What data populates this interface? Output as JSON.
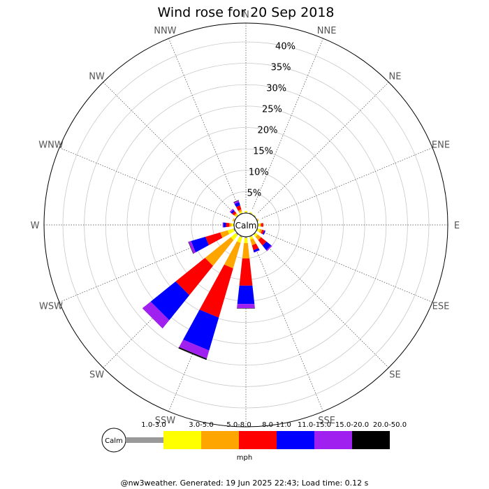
{
  "chart_data": {
    "type": "windrose",
    "title": "Wind rose for 20 Sep 2018",
    "calm_label": "Calm",
    "directions": [
      "N",
      "NNE",
      "NE",
      "ENE",
      "E",
      "ESE",
      "SE",
      "SSE",
      "S",
      "SSW",
      "SW",
      "WSW",
      "W",
      "WNW",
      "NW",
      "NNW"
    ],
    "rings": [
      "5%",
      "10%",
      "15%",
      "20%",
      "25%",
      "30%",
      "35%",
      "40%"
    ],
    "r_max": 40,
    "speed_bins": [
      {
        "label": "1.0-3.0",
        "color": "#999999"
      },
      {
        "label": "3.0-5.0",
        "color": "#ffff00"
      },
      {
        "label": "5.0-8.0",
        "color": "#ffa500"
      },
      {
        "label": "8.0-11.0",
        "color": "#ff0000"
      },
      {
        "label": "11.0-15.0",
        "color": "#0000ff"
      },
      {
        "label": "15.0-20.0",
        "color": "#a020f0"
      },
      {
        "label": "20.0-50.0",
        "color": "#000000"
      }
    ],
    "series": [
      {
        "direction": "N",
        "values": [
          0.2,
          0.3,
          0.0,
          0.0,
          0.0,
          0.0,
          0.0
        ]
      },
      {
        "direction": "NNE",
        "values": [
          0.2,
          0.2,
          0.0,
          0.0,
          0.0,
          0.0,
          0.0
        ]
      },
      {
        "direction": "NE",
        "values": [
          0.2,
          0.1,
          0.0,
          0.0,
          0.0,
          0.0,
          0.0
        ]
      },
      {
        "direction": "ENE",
        "values": [
          0.2,
          0.1,
          0.1,
          0.0,
          0.0,
          0.0,
          0.0
        ]
      },
      {
        "direction": "E",
        "values": [
          0.2,
          0.3,
          0.3,
          0.5,
          0.0,
          0.0,
          0.0
        ]
      },
      {
        "direction": "ESE",
        "values": [
          0.2,
          0.5,
          0.5,
          0.5,
          0.3,
          0.0,
          0.0
        ]
      },
      {
        "direction": "SE",
        "values": [
          0.2,
          0.6,
          1.0,
          1.6,
          1.4,
          0.3,
          0.0
        ]
      },
      {
        "direction": "SSE",
        "values": [
          0.2,
          0.6,
          1.4,
          1.2,
          0.5,
          0.1,
          0.0
        ]
      },
      {
        "direction": "S",
        "values": [
          0.3,
          1.2,
          3.6,
          6.4,
          4.3,
          1.0,
          0.1
        ]
      },
      {
        "direction": "SSW",
        "values": [
          0.3,
          1.3,
          6.2,
          12.0,
          8.0,
          2.0,
          0.3
        ]
      },
      {
        "direction": "SW",
        "values": [
          0.3,
          1.5,
          7.7,
          8.8,
          7.5,
          2.5,
          0.0
        ]
      },
      {
        "direction": "WSW",
        "values": [
          0.3,
          1.4,
          1.8,
          3.6,
          3.5,
          0.6,
          0.1
        ]
      },
      {
        "direction": "W",
        "values": [
          0.2,
          0.4,
          0.5,
          0.8,
          0.6,
          0.2,
          0.0
        ]
      },
      {
        "direction": "WNW",
        "values": [
          0.2,
          0.1,
          0.2,
          0.0,
          0.0,
          0.0,
          0.0
        ]
      },
      {
        "direction": "NW",
        "values": [
          0.2,
          0.3,
          0.3,
          0.6,
          0.4,
          0.3,
          0.0
        ]
      },
      {
        "direction": "NNW",
        "values": [
          0.2,
          0.3,
          0.5,
          1.0,
          0.8,
          0.4,
          0.1
        ]
      }
    ],
    "unit_label": "mph"
  },
  "footer": "@nw3weather. Generated: 19 Jun 2025 22:43; Load time: 0.12 s"
}
